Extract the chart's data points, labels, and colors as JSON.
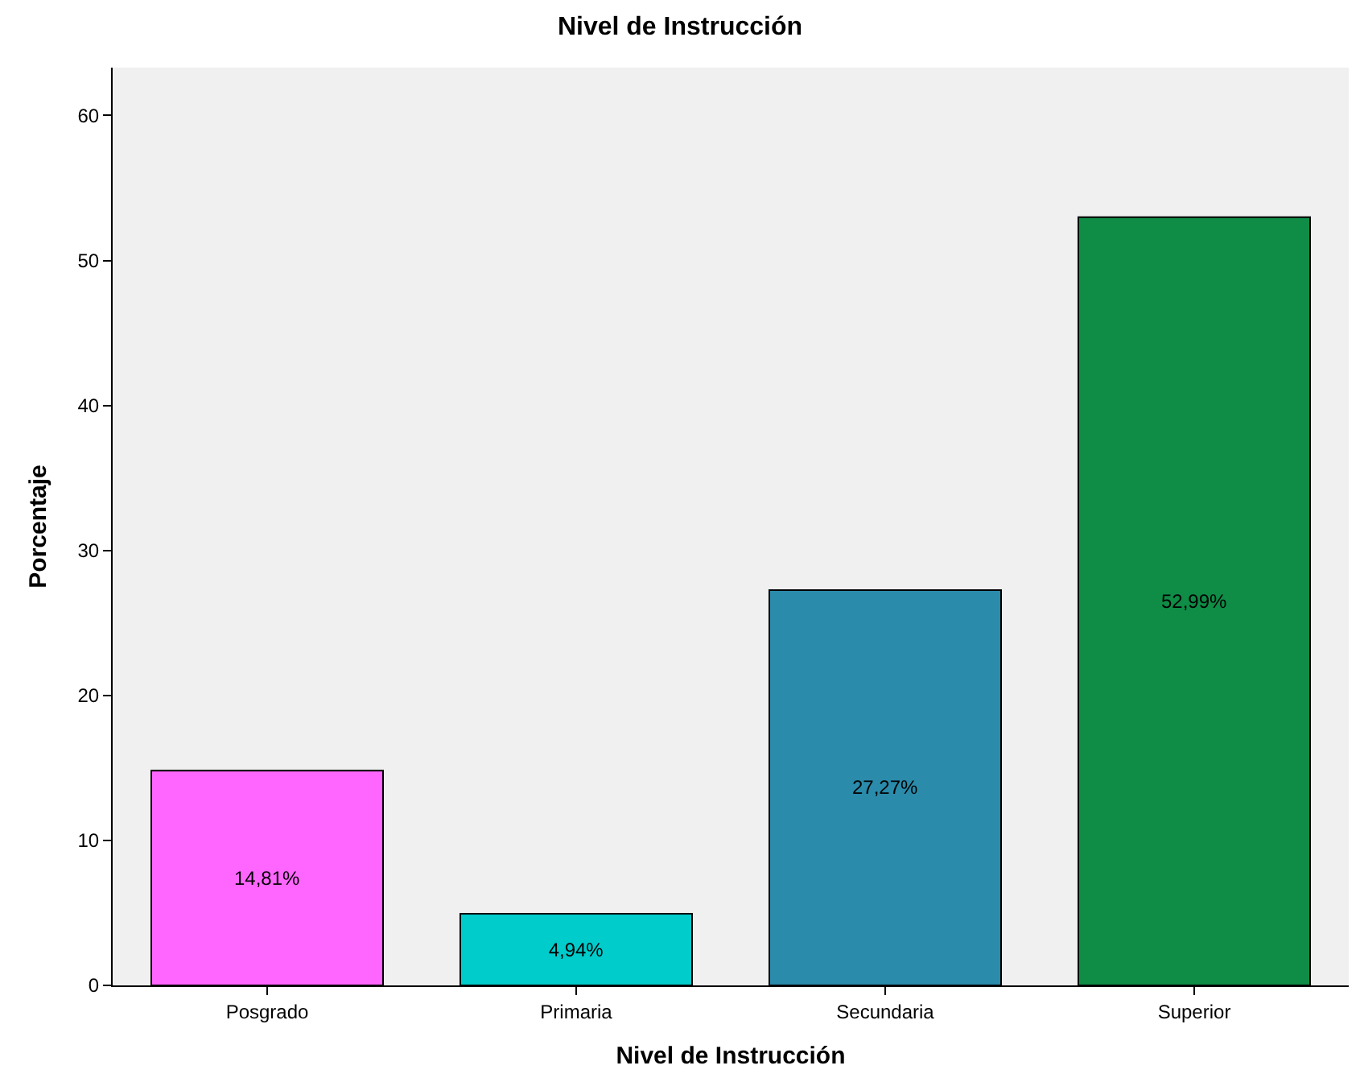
{
  "chart_data": {
    "type": "bar",
    "title": "Nivel de Instrucción",
    "xlabel": "Nivel de Instrucción",
    "ylabel": "Porcentaje",
    "categories": [
      "Posgrado",
      "Primaria",
      "Secundaria",
      "Superior"
    ],
    "values": [
      14.81,
      4.94,
      27.27,
      52.99
    ],
    "colors": [
      "#ff66ff",
      "#00cccc",
      "#2a8bab",
      "#0f8c46"
    ],
    "value_labels": [
      "14,81%",
      "4,94%",
      "27,27%",
      "52,99%"
    ],
    "ylim": [
      0,
      63.3
    ],
    "yticks": [
      0,
      10,
      20,
      30,
      40,
      50,
      60
    ],
    "grid": false,
    "legend": false
  }
}
